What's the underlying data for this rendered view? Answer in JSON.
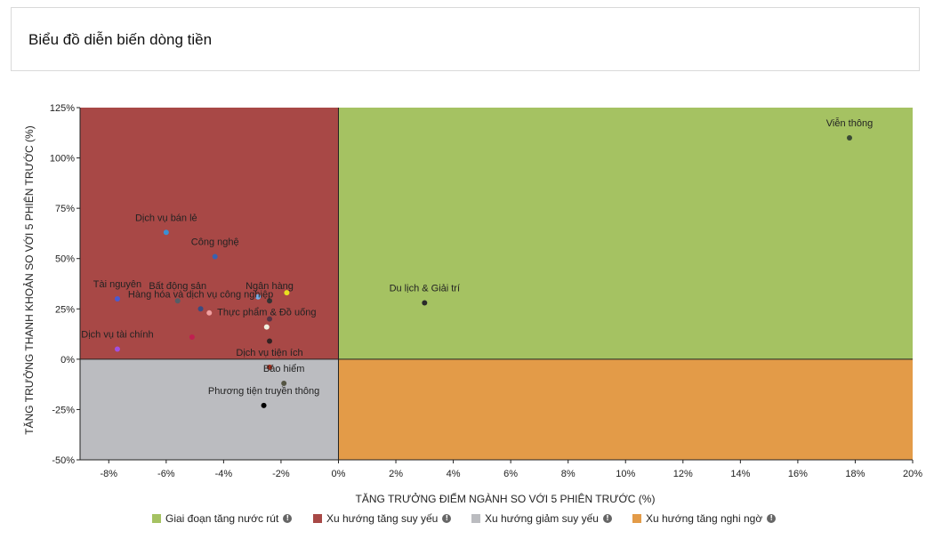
{
  "header": {
    "title": "Biểu đồ diễn biến dòng tiền"
  },
  "chart_data": {
    "type": "scatter",
    "title": "",
    "xlabel": "TĂNG TRƯỞNG ĐIỂM NGÀNH SO VỚI 5 PHIÊN TRƯỚC (%)",
    "ylabel": "TĂNG TRƯỞNG THANH KHOẢN SO VỚI 5 PHIÊN TRƯỚC (%)",
    "xlim": [
      -9,
      20
    ],
    "ylim": [
      -50,
      125
    ],
    "x_ticks": [
      -8,
      -6,
      -4,
      -2,
      0,
      2,
      4,
      6,
      8,
      10,
      12,
      14,
      16,
      18,
      20
    ],
    "y_ticks": [
      -50,
      -25,
      0,
      25,
      50,
      75,
      100,
      125
    ],
    "x_tick_labels": [
      "-8%",
      "-6%",
      "-4%",
      "-2%",
      "0%",
      "2%",
      "4%",
      "6%",
      "8%",
      "10%",
      "12%",
      "14%",
      "16%",
      "18%",
      "20%"
    ],
    "y_tick_labels": [
      "-50%",
      "-25%",
      "0%",
      "25%",
      "50%",
      "75%",
      "100%",
      "125%"
    ],
    "quadrants": [
      {
        "name": "Giai đoạn tăng nước rút",
        "color": "#a5c262",
        "quadrant": "top-right"
      },
      {
        "name": "Xu hướng tăng suy yếu",
        "color": "#a84846",
        "quadrant": "top-left"
      },
      {
        "name": "Xu hướng giảm suy yếu",
        "color": "#bbbcc0",
        "quadrant": "bottom-left"
      },
      {
        "name": "Xu hướng tăng nghi ngờ",
        "color": "#e39b48",
        "quadrant": "bottom-right"
      }
    ],
    "points": [
      {
        "label": "Viễn thông",
        "x": 17.8,
        "y": 110,
        "color": "#3a4a35"
      },
      {
        "label": "Du lịch & Giải trí",
        "x": 3.0,
        "y": 28,
        "color": "#2a2a2a"
      },
      {
        "label": "Dịch vụ bán lẻ",
        "x": -6.0,
        "y": 63,
        "color": "#3a8fd4"
      },
      {
        "label": "Công nghệ",
        "x": -4.3,
        "y": 51,
        "color": "#3a62b0"
      },
      {
        "label": "Tài nguyên",
        "x": -7.7,
        "y": 30,
        "color": "#4a5ad0"
      },
      {
        "label": "Bất động sản",
        "x": -5.6,
        "y": 29,
        "color": "#555d66"
      },
      {
        "label": "Ngân hàng",
        "x": -2.4,
        "y": 29,
        "color": "#333333"
      },
      {
        "label": "",
        "x": -2.8,
        "y": 31,
        "color": "#77b0e8"
      },
      {
        "label": "",
        "x": -1.8,
        "y": 33,
        "color": "#e8e020"
      },
      {
        "label": "Hàng hóa và dịch vụ công nghiệp",
        "x": -4.8,
        "y": 25,
        "color": "#3c4b80"
      },
      {
        "label": "",
        "x": -4.5,
        "y": 23,
        "color": "#f0a0a0"
      },
      {
        "label": "",
        "x": -2.4,
        "y": 20,
        "color": "#553344"
      },
      {
        "label": "Thực phẩm & Đồ uống",
        "x": -2.5,
        "y": 16,
        "color": "#f0f0e0"
      },
      {
        "label": "",
        "x": -2.4,
        "y": 9,
        "color": "#332222"
      },
      {
        "label": "Dịch vụ tài chính",
        "x": -7.7,
        "y": 5,
        "color": "#a050e0"
      },
      {
        "label": "",
        "x": -5.1,
        "y": 11,
        "color": "#c02050"
      },
      {
        "label": "Dịch vụ tiện ích",
        "x": -2.4,
        "y": -4,
        "color": "#a03020"
      },
      {
        "label": "Bảo hiểm",
        "x": -1.9,
        "y": -12,
        "color": "#555544"
      },
      {
        "label": "Phương tiện truyền thông",
        "x": -2.6,
        "y": -23,
        "color": "#000000"
      }
    ]
  },
  "legend": {
    "items": [
      {
        "label": "Giai đoạn tăng nước rút",
        "color": "#a5c262",
        "icon": "info-icon"
      },
      {
        "label": "Xu hướng tăng suy yếu",
        "color": "#a84846",
        "icon": "info-icon"
      },
      {
        "label": "Xu hướng giảm suy yếu",
        "color": "#bbbcc0",
        "icon": "info-icon"
      },
      {
        "label": "Xu hướng tăng nghi ngờ",
        "color": "#e39b48",
        "icon": "info-icon"
      }
    ],
    "info_glyph": "!"
  }
}
